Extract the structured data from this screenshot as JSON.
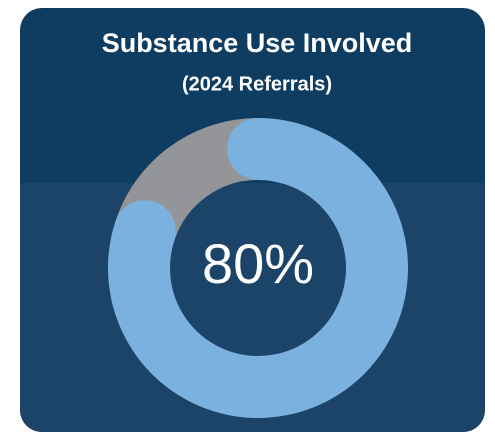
{
  "chart_data": {
    "type": "donut",
    "title": "Substance Use Involved",
    "subtitle": "(2024 Referrals)",
    "values": [
      80,
      20
    ],
    "value_labels": [
      "80%",
      null
    ],
    "colors": [
      "#7ab1df",
      "#939598"
    ]
  }
}
